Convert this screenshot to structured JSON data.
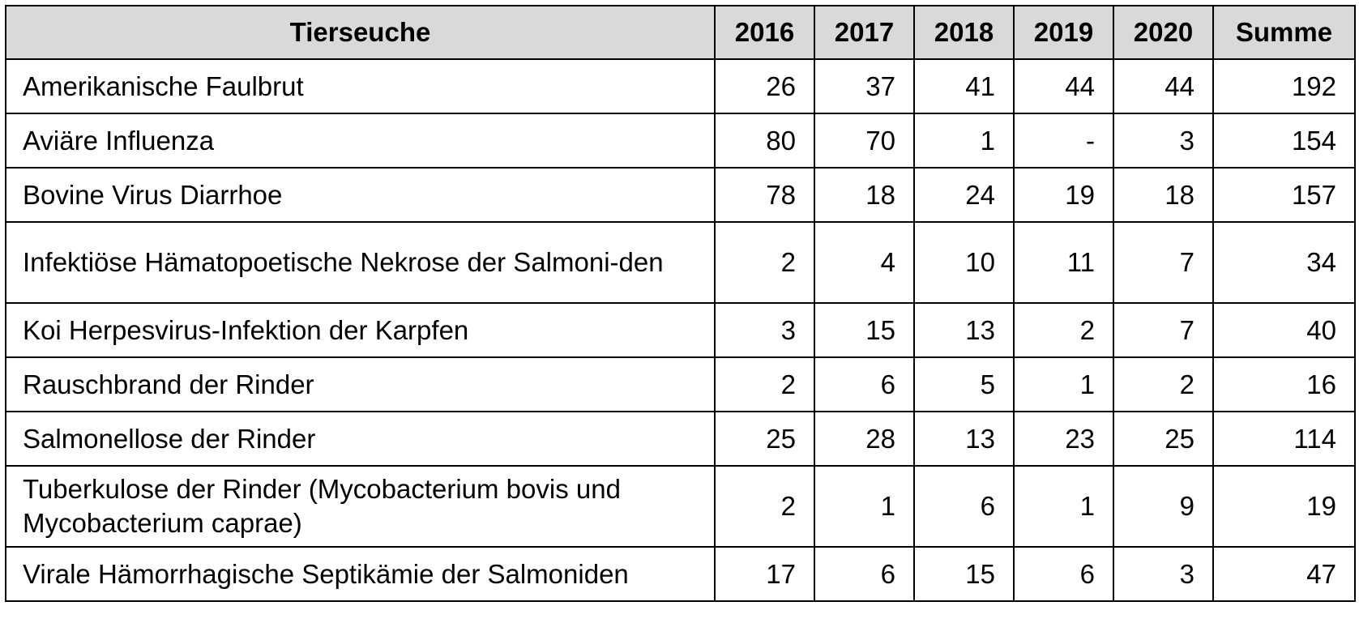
{
  "table": {
    "headers": {
      "name": "Tierseuche",
      "years": [
        "2016",
        "2017",
        "2018",
        "2019",
        "2020"
      ],
      "sum": "Summe"
    },
    "rows": [
      {
        "name": "Amerikanische Faulbrut",
        "values": [
          "26",
          "37",
          "41",
          "44",
          "44"
        ],
        "sum": "192"
      },
      {
        "name": "Aviäre Influenza",
        "values": [
          "80",
          "70",
          "1",
          "-",
          "3"
        ],
        "sum": "154"
      },
      {
        "name": "Bovine Virus Diarrhoe",
        "values": [
          "78",
          "18",
          "24",
          "19",
          "18"
        ],
        "sum": "157"
      },
      {
        "name": "Infektiöse Hämatopoetische Nekrose der Salmoni-den",
        "values": [
          "2",
          "4",
          "10",
          "11",
          "7"
        ],
        "sum": "34"
      },
      {
        "name": "Koi Herpesvirus-Infektion der Karpfen",
        "values": [
          "3",
          "15",
          "13",
          "2",
          "7"
        ],
        "sum": "40"
      },
      {
        "name": "Rauschbrand der Rinder",
        "values": [
          "2",
          "6",
          "5",
          "1",
          "2"
        ],
        "sum": "16"
      },
      {
        "name": "Salmonellose der Rinder",
        "values": [
          "25",
          "28",
          "13",
          "23",
          "25"
        ],
        "sum": "114"
      },
      {
        "name": "Tuberkulose der Rinder (Mycobacterium bovis und Mycobacterium caprae)",
        "values": [
          "2",
          "1",
          "6",
          "1",
          "9"
        ],
        "sum": "19"
      },
      {
        "name": "Virale Hämorrhagische Septikämie der Salmoniden",
        "values": [
          "17",
          "6",
          "15",
          "6",
          "3"
        ],
        "sum": "47"
      }
    ]
  }
}
